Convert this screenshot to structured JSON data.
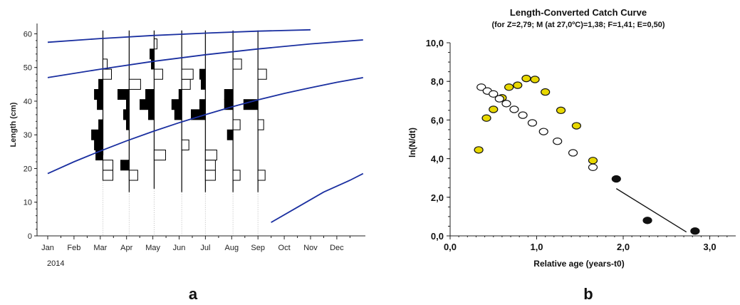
{
  "chart_data": [
    {
      "type": "line",
      "panel_label": "a",
      "xlabel": "",
      "ylabel": "Length (cm)",
      "year_label": "2014",
      "months": [
        "Jan",
        "Feb",
        "Mar",
        "Apr",
        "May",
        "Jun",
        "Jul",
        "Aug",
        "Sep",
        "Oct",
        "Nov",
        "Dec"
      ],
      "xlim": [
        0,
        12
      ],
      "ylim": [
        0,
        62
      ],
      "y_ticks": [
        "0",
        "10",
        "20",
        "30",
        "40",
        "50",
        "60"
      ],
      "grid": false,
      "growth_curves": [
        {
          "points": [
            [
              0,
              57.5
            ],
            [
              2,
              58.6
            ],
            [
              4,
              59.5
            ],
            [
              6,
              60.2
            ],
            [
              8,
              60.8
            ],
            [
              10,
              61.2
            ]
          ]
        },
        {
          "points": [
            [
              0,
              47
            ],
            [
              2,
              49.5
            ],
            [
              4,
              51.8
            ],
            [
              6,
              53.8
            ],
            [
              8,
              55.5
            ],
            [
              10,
              57
            ],
            [
              12,
              58.2
            ]
          ]
        },
        {
          "points": [
            [
              0,
              18.5
            ],
            [
              1,
              22
            ],
            [
              2,
              25.2
            ],
            [
              3,
              28.2
            ],
            [
              4,
              31
            ],
            [
              5,
              33.6
            ],
            [
              6,
              36
            ],
            [
              7,
              38.3
            ],
            [
              8,
              40.4
            ],
            [
              9,
              42.3
            ],
            [
              10,
              44
            ],
            [
              11,
              45.6
            ],
            [
              12,
              47
            ]
          ]
        },
        {
          "points": [
            [
              8.5,
              4
            ],
            [
              9.5,
              8.5
            ],
            [
              10.5,
              13
            ],
            [
              11.5,
              16.5
            ],
            [
              12,
              18.5
            ]
          ]
        }
      ],
      "samples": [
        {
          "month_pos": 2.1,
          "y_min": 24,
          "y_max": 61,
          "bars": [
            {
              "length": 18,
              "value": 0.7,
              "fill": "white"
            },
            {
              "length": 21,
              "value": 0.7,
              "fill": "white"
            },
            {
              "length": 24,
              "value": 0.5,
              "fill": "black"
            },
            {
              "length": 27,
              "value": 0.6,
              "fill": "black"
            },
            {
              "length": 30,
              "value": 0.8,
              "fill": "black"
            },
            {
              "length": 33,
              "value": 0.3,
              "fill": "black"
            },
            {
              "length": 39,
              "value": 0.4,
              "fill": "black"
            },
            {
              "length": 42,
              "value": 0.6,
              "fill": "black"
            },
            {
              "length": 45,
              "value": 0.3,
              "fill": "black"
            },
            {
              "length": 48,
              "value": 0.6,
              "fill": "white"
            },
            {
              "length": 51,
              "value": 0.3,
              "fill": "white"
            }
          ]
        },
        {
          "month_pos": 3.1,
          "y_min": 13,
          "y_max": 61,
          "bars": [
            {
              "length": 18,
              "value": 0.6,
              "fill": "white"
            },
            {
              "length": 21,
              "value": 0.6,
              "fill": "black"
            },
            {
              "length": 33,
              "value": 0.2,
              "fill": "black"
            },
            {
              "length": 36,
              "value": 0.4,
              "fill": "black"
            },
            {
              "length": 39,
              "value": 0.2,
              "fill": "black"
            },
            {
              "length": 42,
              "value": 0.8,
              "fill": "black"
            },
            {
              "length": 45,
              "value": 0.8,
              "fill": "white"
            }
          ]
        },
        {
          "month_pos": 4.05,
          "y_min": 14,
          "y_max": 61,
          "bars": [
            {
              "length": 24,
              "value": 0.8,
              "fill": "white"
            },
            {
              "length": 36,
              "value": 0.4,
              "fill": "black"
            },
            {
              "length": 39,
              "value": 1.0,
              "fill": "black"
            },
            {
              "length": 42,
              "value": 0.6,
              "fill": "black"
            },
            {
              "length": 48,
              "value": 0.6,
              "fill": "white"
            },
            {
              "length": 51,
              "value": 0.2,
              "fill": "black"
            },
            {
              "length": 54,
              "value": 0.3,
              "fill": "black"
            },
            {
              "length": 57,
              "value": 0.2,
              "fill": "white"
            }
          ]
        },
        {
          "month_pos": 5.1,
          "y_min": 13,
          "y_max": 61,
          "bars": [
            {
              "length": 27,
              "value": 0.5,
              "fill": "white"
            },
            {
              "length": 36,
              "value": 0.5,
              "fill": "black"
            },
            {
              "length": 39,
              "value": 0.7,
              "fill": "black"
            },
            {
              "length": 42,
              "value": 0.2,
              "fill": "black"
            },
            {
              "length": 45,
              "value": 0.6,
              "fill": "white"
            },
            {
              "length": 48,
              "value": 0.8,
              "fill": "white"
            }
          ]
        },
        {
          "month_pos": 6.0,
          "y_min": 13,
          "y_max": 61,
          "bars": [
            {
              "length": 18,
              "value": 0.7,
              "fill": "white"
            },
            {
              "length": 21,
              "value": 0.7,
              "fill": "white"
            },
            {
              "length": 24,
              "value": 0.8,
              "fill": "white"
            },
            {
              "length": 36,
              "value": 1.0,
              "fill": "black"
            },
            {
              "length": 39,
              "value": 0.4,
              "fill": "black"
            },
            {
              "length": 45,
              "value": 0.3,
              "fill": "black"
            },
            {
              "length": 48,
              "value": 0.4,
              "fill": "black"
            }
          ]
        },
        {
          "month_pos": 7.05,
          "y_min": 13,
          "y_max": 61,
          "bars": [
            {
              "length": 18,
              "value": 0.5,
              "fill": "white"
            },
            {
              "length": 30,
              "value": 0.4,
              "fill": "black"
            },
            {
              "length": 33,
              "value": 0.5,
              "fill": "white"
            },
            {
              "length": 39,
              "value": 0.6,
              "fill": "black"
            },
            {
              "length": 42,
              "value": 0.6,
              "fill": "black"
            },
            {
              "length": 51,
              "value": 0.6,
              "fill": "white"
            }
          ]
        },
        {
          "month_pos": 8.0,
          "y_min": 13,
          "y_max": 61,
          "bars": [
            {
              "length": 18,
              "value": 0.5,
              "fill": "white"
            },
            {
              "length": 33,
              "value": 0.4,
              "fill": "white"
            },
            {
              "length": 39,
              "value": 1.0,
              "fill": "black"
            },
            {
              "length": 48,
              "value": 0.6,
              "fill": "white"
            }
          ]
        }
      ]
    },
    {
      "type": "scatter",
      "panel_label": "b",
      "title": "Length-Converted Catch Curve",
      "subtitle": "(for Z=2,79; M (at 27,0ºC)=1,38; F=1,41; E=0,50)",
      "xlabel": "Relative age (years-t0)",
      "ylabel": "ln(N/dt)",
      "xlim": [
        0,
        3.3
      ],
      "ylim": [
        0,
        10
      ],
      "x_ticks": [
        "0,0",
        "1,0",
        "2,0",
        "3,0"
      ],
      "y_ticks": [
        "0,0",
        "2,0",
        "4,0",
        "6,0",
        "8,0",
        "10,0"
      ],
      "grid": false,
      "series": [
        {
          "marker": "yellow",
          "color": "#e8d800",
          "points": [
            [
              0.33,
              4.45
            ],
            [
              0.42,
              6.1
            ],
            [
              0.5,
              6.55
            ],
            [
              0.6,
              7.15
            ],
            [
              0.68,
              7.7
            ],
            [
              0.78,
              7.8
            ],
            [
              0.88,
              8.15
            ],
            [
              0.98,
              8.1
            ],
            [
              1.1,
              7.45
            ],
            [
              1.28,
              6.5
            ],
            [
              1.46,
              5.7
            ],
            [
              1.65,
              3.9
            ]
          ]
        },
        {
          "marker": "white",
          "color": "#ffffff",
          "points": [
            [
              0.36,
              7.7
            ],
            [
              0.43,
              7.5
            ],
            [
              0.5,
              7.35
            ],
            [
              0.57,
              7.1
            ],
            [
              0.65,
              6.85
            ],
            [
              0.74,
              6.55
            ],
            [
              0.84,
              6.25
            ],
            [
              0.95,
              5.85
            ],
            [
              1.08,
              5.4
            ],
            [
              1.24,
              4.9
            ],
            [
              1.42,
              4.3
            ],
            [
              1.65,
              3.55
            ]
          ]
        },
        {
          "marker": "black",
          "color": "#111111",
          "points": [
            [
              1.92,
              2.95
            ],
            [
              2.28,
              0.8
            ],
            [
              2.83,
              0.25
            ]
          ]
        }
      ],
      "regression_line": {
        "from": [
          1.92,
          2.45
        ],
        "to": [
          2.73,
          0.2
        ]
      }
    }
  ]
}
